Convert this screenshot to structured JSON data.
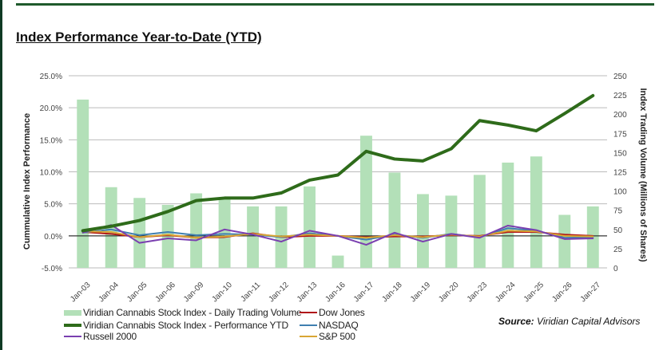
{
  "title": "Index Performance Year-to-Date (YTD)",
  "source_label": "Source:",
  "source_text": "Viridian Capital Advisors",
  "chart_data": {
    "type": "bar+line",
    "title": "",
    "xlabel": "",
    "ylabel_left": "Cummulative Index Performance",
    "ylabel_right": "Index Trading Volume (Millions of Shares)",
    "ylim_left": [
      -5,
      25
    ],
    "ylim_right": [
      0,
      250
    ],
    "left_ticks": [
      "-5.0%",
      "0.0%",
      "5.0%",
      "10.0%",
      "15.0%",
      "20.0%",
      "25.0%"
    ],
    "left_tick_values": [
      -5,
      0,
      5,
      10,
      15,
      20,
      25
    ],
    "right_ticks": [
      "0",
      "25",
      "50",
      "75",
      "100",
      "125",
      "150",
      "175",
      "200",
      "225",
      "250"
    ],
    "right_tick_values": [
      0,
      25,
      50,
      75,
      100,
      125,
      150,
      175,
      200,
      225,
      250
    ],
    "grid": true,
    "legend_placement": "bottom-left",
    "categories": [
      "Jan-03",
      "Jan-04",
      "Jan-05",
      "Jan-06",
      "Jan-09",
      "Jan-10",
      "Jan-11",
      "Jan-12",
      "Jan-13",
      "Jan-16",
      "Jan-17",
      "Jan-18",
      "Jan-19",
      "Jan-20",
      "Jan-23",
      "Jan-24",
      "Jan-25",
      "Jan-26",
      "Jan-27"
    ],
    "bars": {
      "name": "Viridian Cannabis Stock Index - Daily Trading Volume",
      "axis": "right",
      "color": "#b3e0b8",
      "values": [
        219,
        105,
        91,
        82,
        97,
        89,
        80,
        80,
        106,
        16,
        172,
        124,
        96,
        94,
        121,
        137,
        145,
        69,
        80
      ]
    },
    "series": [
      {
        "name": "Viridian Cannabis Stock Index - Performance YTD",
        "axis": "left",
        "color": "#2e6b1a",
        "width": 4,
        "values": [
          0.8,
          1.5,
          2.4,
          3.8,
          5.5,
          5.9,
          5.9,
          6.7,
          8.7,
          9.5,
          13.2,
          12.0,
          11.7,
          13.6,
          18.0,
          17.3,
          16.4,
          19.1,
          21.9
        ]
      },
      {
        "name": "Dow Jones",
        "axis": "left",
        "color": "#b0171a",
        "width": 2,
        "values": [
          0.6,
          0.3,
          -0.2,
          0.1,
          -0.3,
          -0.2,
          0.4,
          -0.2,
          0.0,
          0.0,
          -0.2,
          -0.1,
          -0.1,
          0.1,
          0.0,
          0.6,
          0.6,
          0.2,
          0.0
        ]
      },
      {
        "name": "NASDAQ",
        "axis": "left",
        "color": "#3f7fb0",
        "width": 2,
        "values": [
          0.5,
          1.0,
          0.1,
          0.6,
          0.1,
          0.3,
          0.2,
          -0.2,
          0.4,
          0.0,
          -0.6,
          0.2,
          -0.3,
          0.3,
          -0.2,
          1.2,
          0.8,
          -0.3,
          -0.2
        ]
      },
      {
        "name": "S&P 500",
        "axis": "left",
        "color": "#d9a634",
        "width": 2,
        "values": [
          0.7,
          0.6,
          -0.2,
          0.2,
          -0.3,
          -0.1,
          0.3,
          -0.1,
          0.2,
          0.0,
          -0.3,
          0.1,
          -0.2,
          0.2,
          -0.1,
          0.8,
          0.7,
          0.0,
          -0.1
        ]
      },
      {
        "name": "Russell 2000",
        "axis": "left",
        "color": "#7a3fb0",
        "width": 2,
        "values": [
          0.5,
          1.7,
          -1.1,
          -0.4,
          -0.7,
          1.0,
          0.2,
          -0.9,
          0.8,
          0.0,
          -1.4,
          0.5,
          -0.9,
          0.3,
          -0.3,
          1.6,
          0.9,
          -0.5,
          -0.4
        ]
      }
    ]
  }
}
